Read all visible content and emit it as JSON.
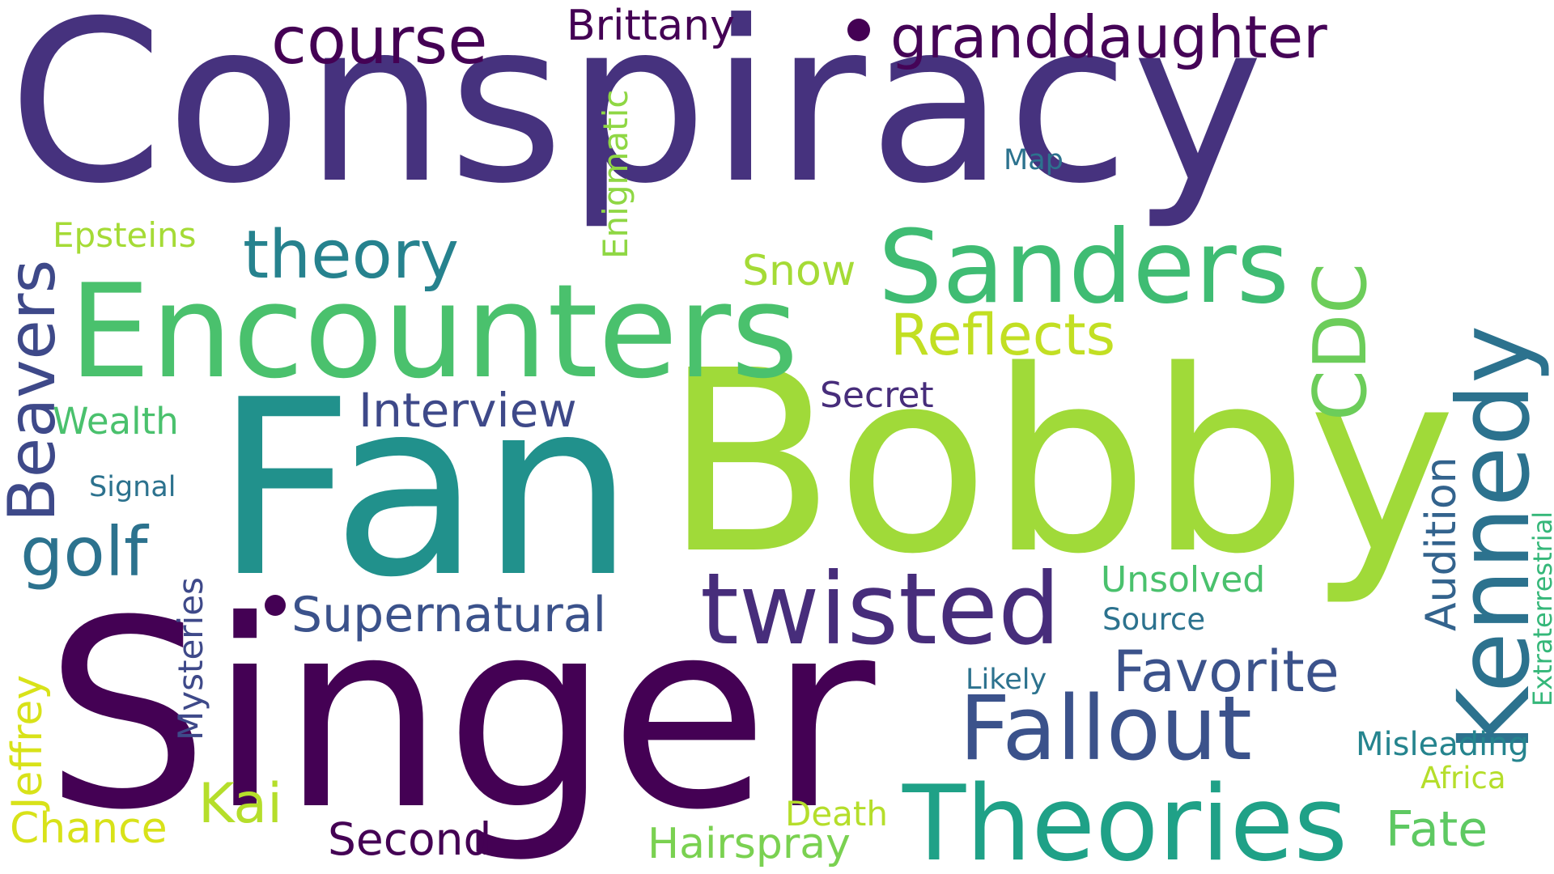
{
  "words": [
    {
      "text": "Conspiracy",
      "color": "#46327e"
    },
    {
      "text": "Fan",
      "color": "#21918c"
    },
    {
      "text": "Bobby",
      "color": "#a0da39"
    },
    {
      "text": "Singer",
      "color": "#440154"
    },
    {
      "text": "Encounters",
      "color": "#4ac16d"
    },
    {
      "text": "Sanders",
      "color": "#3fbc73"
    },
    {
      "text": "twisted",
      "color": "#472d7b"
    },
    {
      "text": "Theories",
      "color": "#1fa187"
    },
    {
      "text": "Fallout",
      "color": "#3b528b"
    },
    {
      "text": "Kennedy",
      "color": "#2c728e"
    },
    {
      "text": "CDC",
      "color": "#6ccd5a"
    },
    {
      "text": "course",
      "color": "#440154"
    },
    {
      "text": "granddaughter",
      "color": "#450457"
    },
    {
      "text": "theory",
      "color": "#26828e"
    },
    {
      "text": "Reflects",
      "color": "#c2df23"
    },
    {
      "text": "Favorite",
      "color": "#3b528b"
    },
    {
      "text": "Beavers",
      "color": "#3e4989"
    },
    {
      "text": "golf",
      "color": "#2c728e"
    },
    {
      "text": "Supernatural",
      "color": "#3b528b"
    },
    {
      "text": "Interview",
      "color": "#3e4989"
    },
    {
      "text": "Kai",
      "color": "#b5de2b"
    },
    {
      "text": "Fate",
      "color": "#5ec962"
    },
    {
      "text": "Hairspray",
      "color": "#7ad151"
    },
    {
      "text": "Second",
      "color": "#440154"
    },
    {
      "text": "Chance",
      "color": "#d8e219"
    },
    {
      "text": "Brittany",
      "color": "#440154"
    },
    {
      "text": "Snow",
      "color": "#a5db36"
    },
    {
      "text": "Audition",
      "color": "#33638d"
    },
    {
      "text": "Unsolved",
      "color": "#4ac16d"
    },
    {
      "text": "Jeffrey",
      "color": "#d8e219"
    },
    {
      "text": "Mysteries",
      "color": "#3e4989"
    },
    {
      "text": "Epsteins",
      "color": "#a5db36"
    },
    {
      "text": "Enigmatic",
      "color": "#8fd744"
    },
    {
      "text": "Wealth",
      "color": "#4ac16d"
    },
    {
      "text": "Secret",
      "color": "#472d7b"
    },
    {
      "text": "Death",
      "color": "#b5de2b"
    },
    {
      "text": "Misleading",
      "color": "#25848e"
    },
    {
      "text": "Extraterrestrial",
      "color": "#35b779"
    },
    {
      "text": "Africa",
      "color": "#b5de2b"
    },
    {
      "text": "Signal",
      "color": "#2c728e"
    },
    {
      "text": "Source",
      "color": "#2c728e"
    },
    {
      "text": "Likely",
      "color": "#2c728e"
    },
    {
      "text": "Map",
      "color": "#2c728e"
    }
  ],
  "marks": [
    {
      "name": "bullet-dot-top",
      "color": "#440154"
    },
    {
      "name": "bullet-dot-middle",
      "color": "#440154"
    }
  ]
}
